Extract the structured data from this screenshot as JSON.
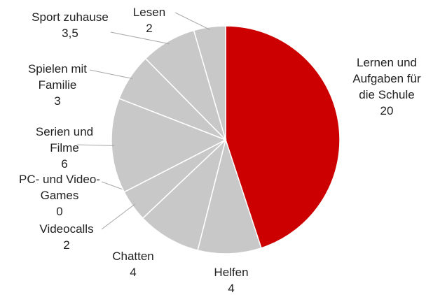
{
  "chart_data": {
    "type": "pie",
    "categories": [
      "Lernen und Aufgaben für die Schule",
      "Helfen",
      "Chatten",
      "Videocalls",
      "PC- und Video-Games",
      "Serien und Filme",
      "Spielen mit Familie",
      "Sport zuhause",
      "Lesen"
    ],
    "values": [
      20,
      4,
      4,
      2,
      0,
      6,
      3,
      3.5,
      2
    ],
    "value_labels": [
      "20",
      "4",
      "4",
      "2",
      "0",
      "6",
      "3",
      "3,5",
      "2"
    ],
    "colors": [
      "#cc0000",
      "#c8c8c8",
      "#c8c8c8",
      "#c8c8c8",
      "#c8c8c8",
      "#c8c8c8",
      "#c8c8c8",
      "#c8c8c8",
      "#c8c8c8"
    ]
  }
}
